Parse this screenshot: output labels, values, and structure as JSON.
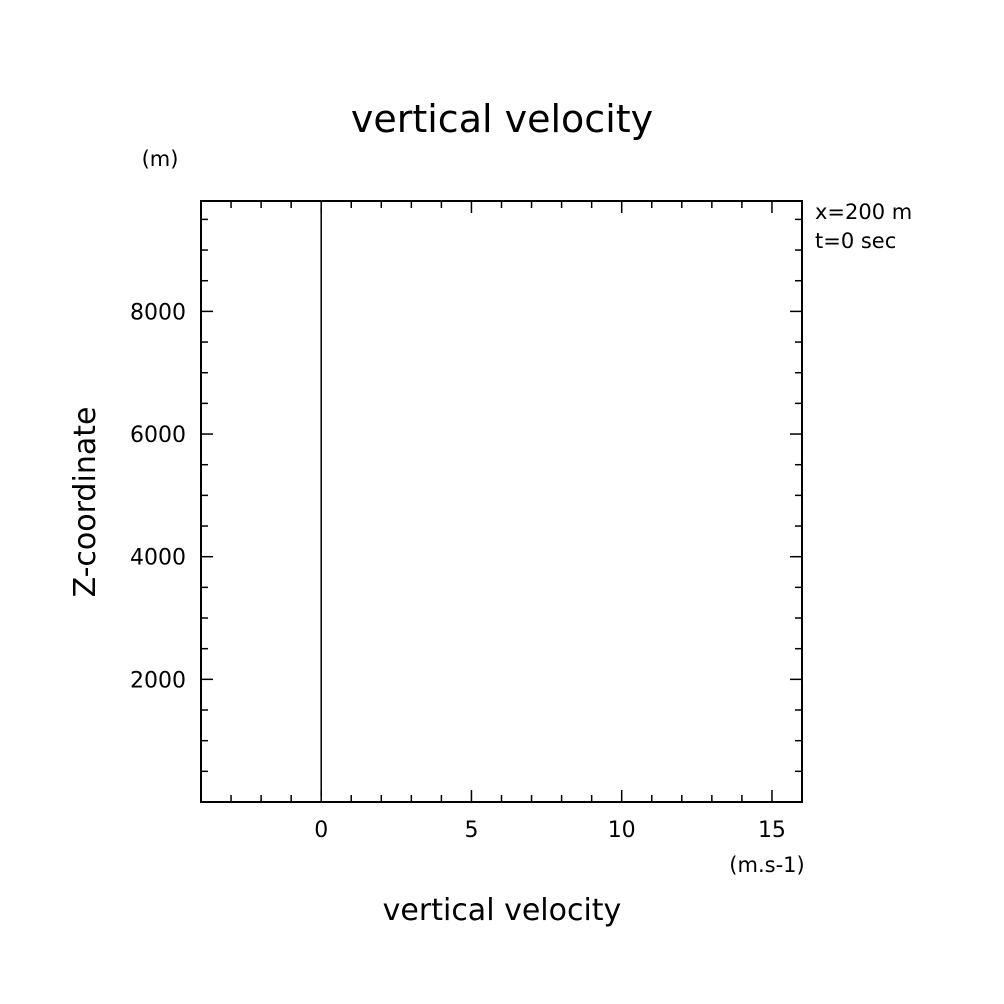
{
  "chart_data": {
    "type": "line",
    "title": "vertical velocity",
    "xlabel": "vertical velocity",
    "ylabel": "Z-coordinate",
    "x_unit": "(m.s-1)",
    "y_unit": "(m)",
    "annotations": [
      "x=200 m",
      "t=0 sec"
    ],
    "xlim": [
      -4,
      16
    ],
    "ylim": [
      0,
      9800
    ],
    "x_major_ticks": [
      0,
      5,
      10,
      15
    ],
    "x_tick_labels": [
      "0",
      "5",
      "10",
      "15"
    ],
    "x_minor_step": 1,
    "y_major_ticks": [
      2000,
      4000,
      6000,
      8000
    ],
    "y_tick_labels": [
      "2000",
      "4000",
      "6000",
      "8000"
    ],
    "y_minor_step": 500,
    "grid": false,
    "series": [
      {
        "x": [
          0,
          0
        ],
        "y": [
          100,
          9700
        ]
      }
    ]
  }
}
